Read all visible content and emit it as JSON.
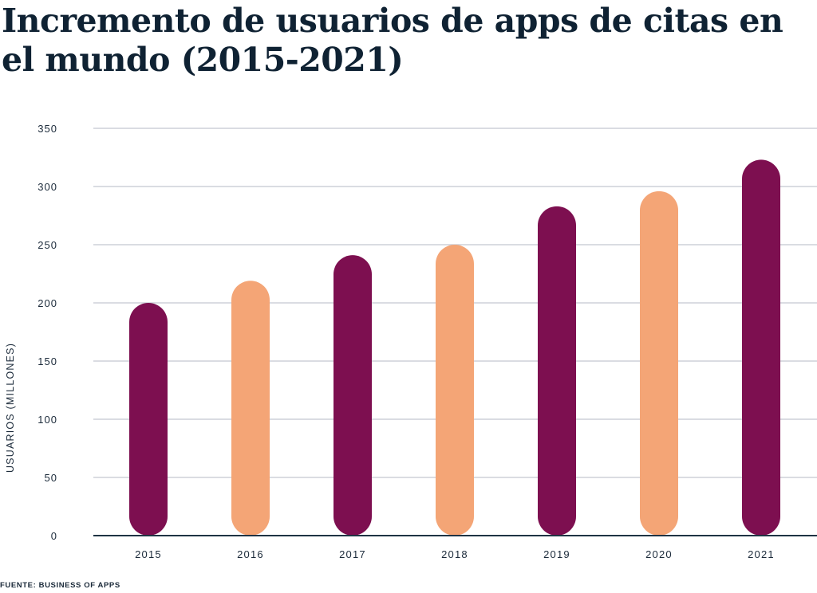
{
  "chart_data": {
    "type": "bar",
    "title": "Incremento de usuarios de apps de citas en el mundo (2015-2021)",
    "ylabel": "USUARIOS (MILLONES)",
    "xlabel": "",
    "categories": [
      "2015",
      "2016",
      "2017",
      "2018",
      "2019",
      "2020",
      "2021"
    ],
    "values": [
      200,
      219,
      241,
      250,
      283,
      296,
      323
    ],
    "bar_colors": [
      "#7d0f50",
      "#f4a576",
      "#7d0f50",
      "#f4a576",
      "#7d0f50",
      "#f4a576",
      "#7d0f50"
    ],
    "ylim": [
      0,
      350
    ],
    "yticks": [
      0,
      50,
      100,
      150,
      200,
      250,
      300,
      350
    ],
    "grid": true,
    "bar_style": "rounded pill",
    "source": "FUENTE: BUSINESS OF APPS"
  }
}
